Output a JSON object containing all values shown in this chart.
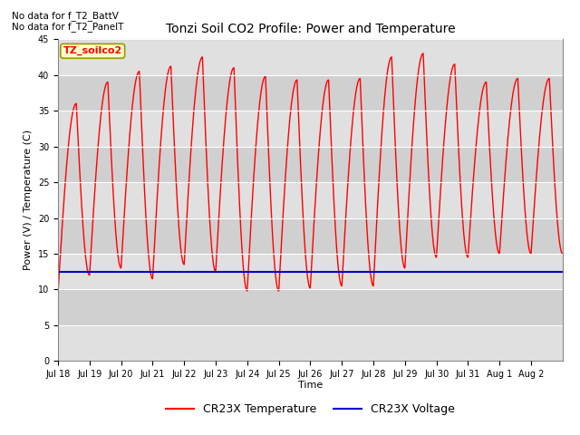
{
  "title": "Tonzi Soil CO2 Profile: Power and Temperature",
  "ylabel": "Power (V) / Temperature (C)",
  "xlabel": "Time",
  "no_data_text_1": "No data for f_T2_BattV",
  "no_data_text_2": "No data for f_T2_PanelT",
  "legend_label_text": "TZ_soilco2",
  "ylim": [
    0,
    45
  ],
  "yticks": [
    0,
    5,
    10,
    15,
    20,
    25,
    30,
    35,
    40,
    45
  ],
  "num_days": 16,
  "x_tick_labels": [
    "Jul 18",
    "Jul 19",
    "Jul 20",
    "Jul 21",
    "Jul 22",
    "Jul 23",
    "Jul 24",
    "Jul 25",
    "Jul 26",
    "Jul 27",
    "Jul 28",
    "Jul 29",
    "Jul 30",
    "Jul 31",
    "Aug 1",
    "Aug 2"
  ],
  "temp_color": "#ff0000",
  "voltage_color": "#0000cc",
  "voltage_value": 12.5,
  "background_color": "#ffffff",
  "plot_bg_color": "#e0e0e0",
  "grid_color": "#ffffff",
  "legend_bg_color": "#ffffcc",
  "legend_border_color": "#999900",
  "temp_peaks": [
    36.0,
    39.0,
    40.5,
    41.2,
    42.5,
    41.0,
    39.8,
    39.3,
    39.3,
    39.5,
    42.5,
    43.0,
    41.5,
    39.0,
    39.5,
    39.5
  ],
  "temp_troughs": [
    9.5,
    12.0,
    13.0,
    11.5,
    13.5,
    12.5,
    9.8,
    9.8,
    10.2,
    10.5,
    10.5,
    13.0,
    14.5,
    14.5,
    15.0,
    15.0
  ],
  "line_legend_entries": [
    {
      "label": "CR23X Temperature",
      "color": "#ff0000",
      "lw": 1.5
    },
    {
      "label": "CR23X Voltage",
      "color": "#0000cc",
      "lw": 1.5
    }
  ],
  "title_fontsize": 10,
  "axis_label_fontsize": 8,
  "tick_fontsize": 7,
  "legend_fontsize": 9
}
